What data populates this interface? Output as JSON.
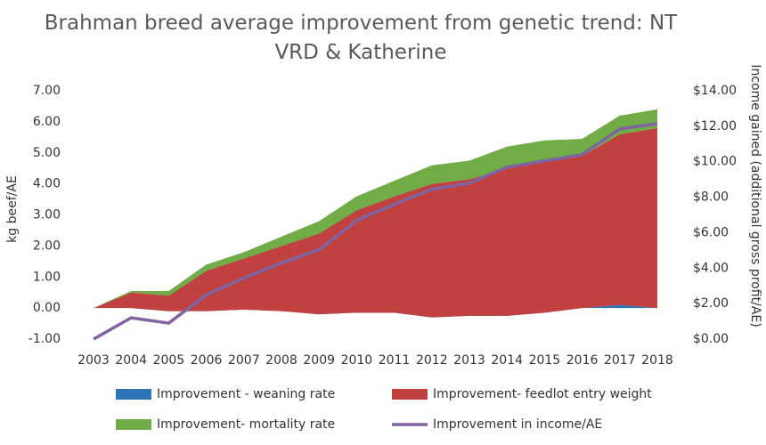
{
  "chart_data": {
    "type": "stacked-area-line",
    "title": "Brahman breed average improvement from genetic trend: NT VRD & Katherine",
    "y_label": "kg beef/AE",
    "y2_label": "Income gained (additional gross profit/AE)",
    "categories": [
      "2003",
      "2004",
      "2005",
      "2006",
      "2007",
      "2008",
      "2009",
      "2010",
      "2011",
      "2012",
      "2013",
      "2014",
      "2015",
      "2016",
      "2017",
      "2018"
    ],
    "series": [
      {
        "name": "Improvement - weaning rate",
        "color": "#2e75b6",
        "kind": "area",
        "values": [
          0,
          0,
          -0.1,
          -0.1,
          -0.05,
          -0.1,
          -0.2,
          -0.15,
          -0.15,
          -0.3,
          -0.25,
          -0.25,
          -0.15,
          0,
          0.1,
          0
        ]
      },
      {
        "name": "Improvement- feedlot entry weight",
        "color": "#c0413f",
        "kind": "area",
        "values": [
          0,
          0.5,
          0.5,
          1.3,
          1.65,
          2.1,
          2.6,
          3.3,
          3.75,
          4.3,
          4.4,
          4.75,
          4.85,
          4.9,
          5.5,
          5.8
        ]
      },
      {
        "name": "Improvement- mortality rate",
        "color": "#70ad47",
        "kind": "area",
        "values": [
          0,
          0.05,
          0.15,
          0.2,
          0.2,
          0.3,
          0.4,
          0.45,
          0.5,
          0.6,
          0.6,
          0.7,
          0.7,
          0.55,
          0.6,
          0.6
        ]
      },
      {
        "name": "Improvement in income/AE",
        "color": "#8064a2",
        "kind": "line",
        "axis": "y2",
        "values": [
          0,
          1.2,
          0.9,
          2.5,
          3.45,
          4.3,
          5.05,
          6.7,
          7.6,
          8.45,
          8.8,
          9.7,
          10.05,
          10.4,
          11.85,
          12.15
        ]
      }
    ],
    "ylim": [
      -1,
      7
    ],
    "yticks": [
      {
        "value": -1,
        "label": "-1.00"
      },
      {
        "value": 0,
        "label": "0.00"
      },
      {
        "value": 1,
        "label": "1.00"
      },
      {
        "value": 2,
        "label": "2.00"
      },
      {
        "value": 3,
        "label": "3.00"
      },
      {
        "value": 4,
        "label": "4.00"
      },
      {
        "value": 5,
        "label": "5.00"
      },
      {
        "value": 6,
        "label": "6.00"
      },
      {
        "value": 7,
        "label": "7.00"
      }
    ],
    "y2lim": [
      0,
      14
    ],
    "y2ticks": [
      {
        "value": 0,
        "label": "$0.00"
      },
      {
        "value": 2,
        "label": "$2.00"
      },
      {
        "value": 4,
        "label": "$4.00"
      },
      {
        "value": 6,
        "label": "$6.00"
      },
      {
        "value": 8,
        "label": "$8.00"
      },
      {
        "value": 10,
        "label": "$10.00"
      },
      {
        "value": 12,
        "label": "$12.00"
      },
      {
        "value": 14,
        "label": "$14.00"
      }
    ],
    "grid": false
  }
}
